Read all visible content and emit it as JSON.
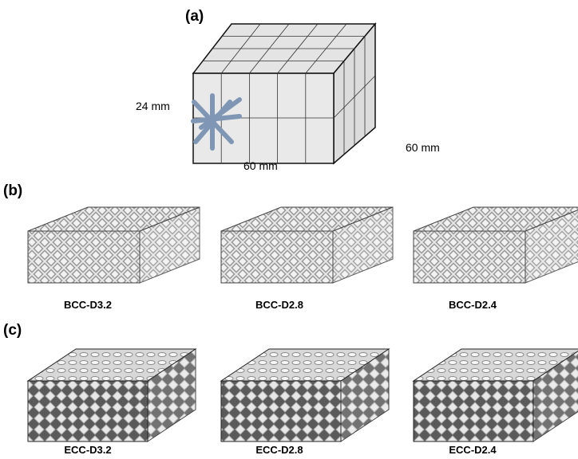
{
  "panels": [
    {
      "label": "(a)",
      "dimensions": {
        "height": "24 mm",
        "width": "60 mm",
        "depth": "60 mm"
      }
    },
    {
      "label": "(b)",
      "items": [
        "BCC-D3.2",
        "BCC-D2.8",
        "BCC-D2.4"
      ]
    },
    {
      "label": "(c)",
      "items": [
        "ECC-D3.2",
        "ECC-D2.8",
        "ECC-D2.4"
      ]
    }
  ]
}
